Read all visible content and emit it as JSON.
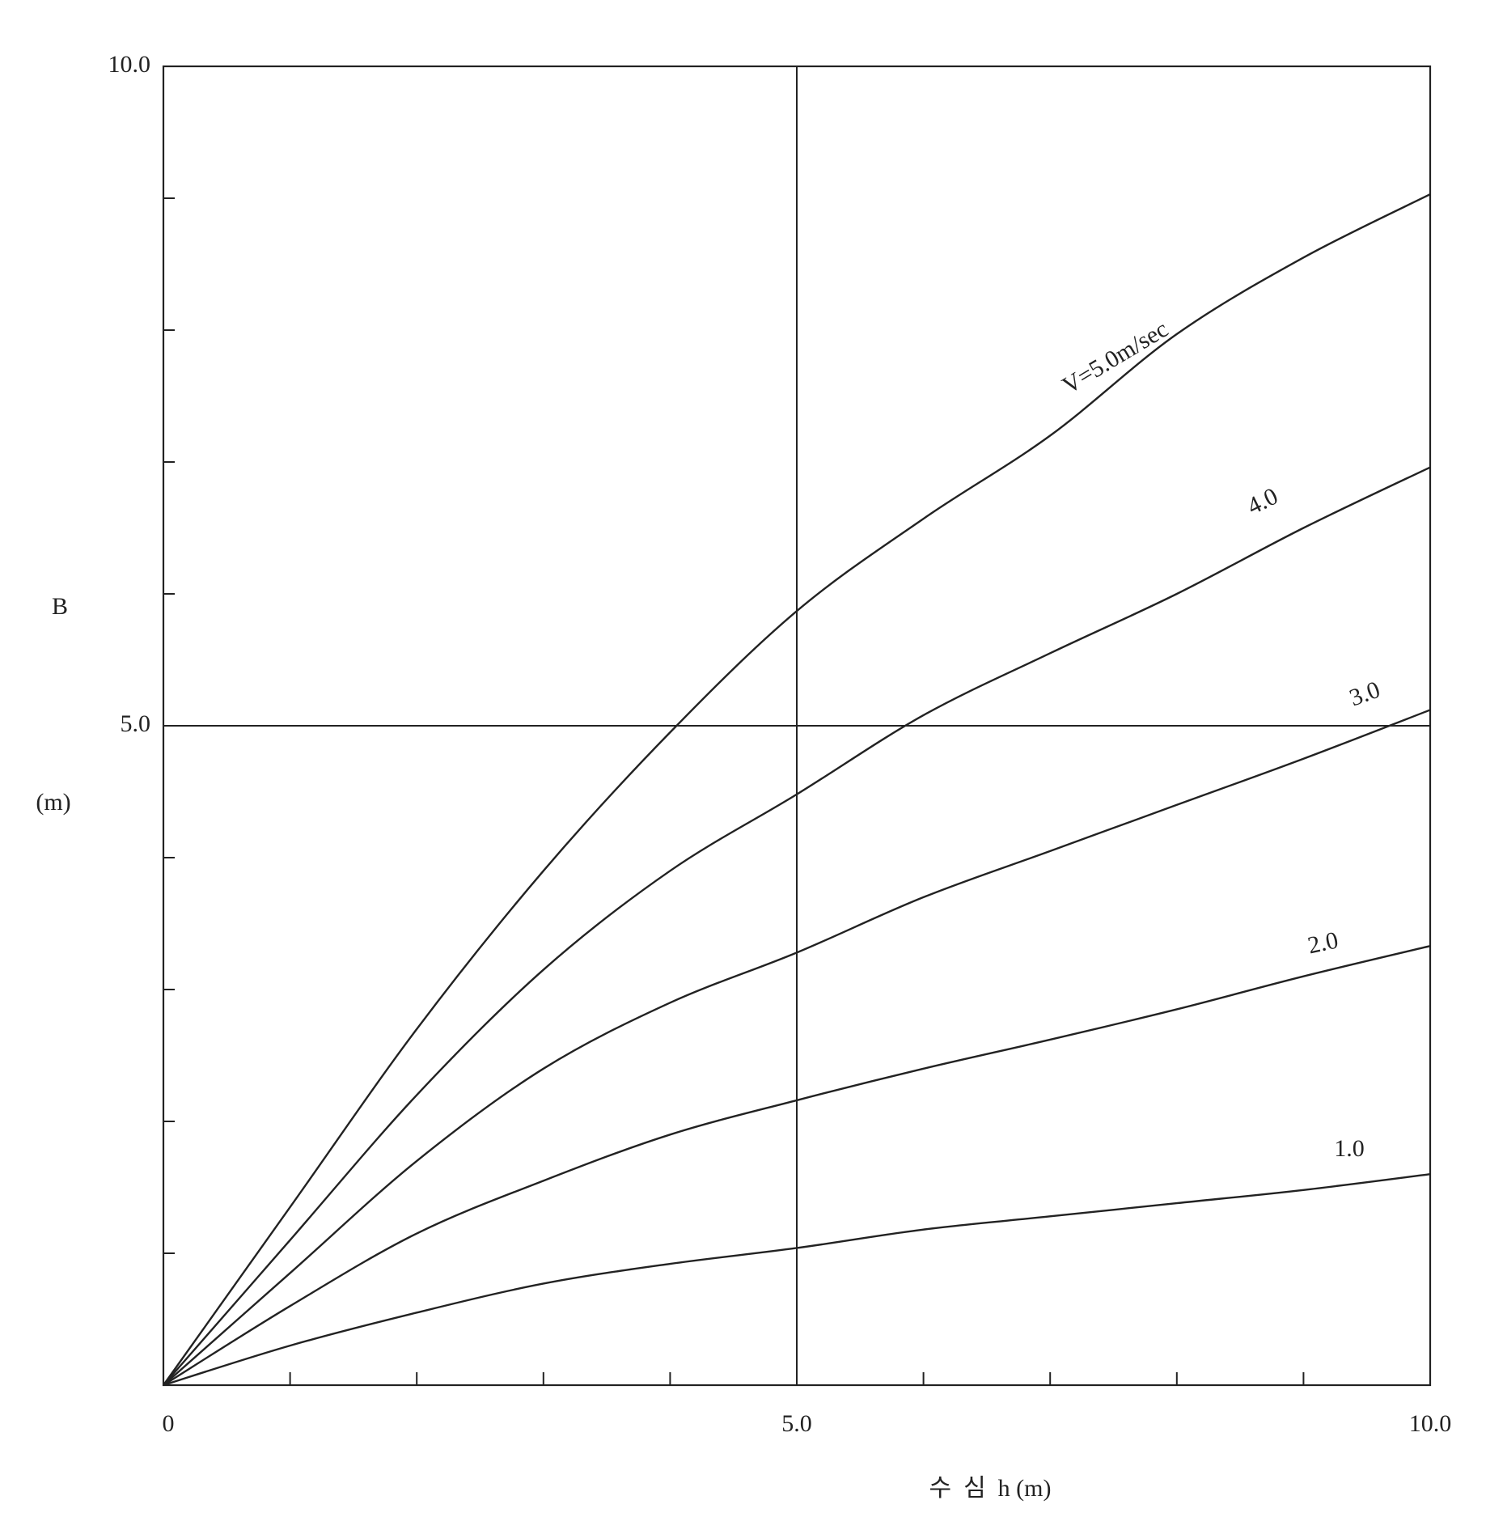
{
  "chart_data": {
    "type": "line",
    "x_label": "수  심  h (m)",
    "y_label": "B",
    "y_unit": "(m)",
    "x": [
      0,
      1,
      2,
      3,
      4,
      5,
      6,
      7,
      8,
      9,
      10
    ],
    "series": [
      {
        "name": "V=5.0m/sec",
        "color": "#222222",
        "values": [
          0,
          1.35,
          2.7,
          3.9,
          4.95,
          5.87,
          6.57,
          7.2,
          7.97,
          8.55,
          9.03
        ]
      },
      {
        "name": "4.0",
        "color": "#222222",
        "values": [
          0,
          1.1,
          2.2,
          3.15,
          3.9,
          4.48,
          5.08,
          5.55,
          6.0,
          6.5,
          6.96
        ]
      },
      {
        "name": "3.0",
        "color": "#222222",
        "values": [
          0,
          0.85,
          1.7,
          2.4,
          2.9,
          3.28,
          3.7,
          4.05,
          4.4,
          4.75,
          5.12
        ]
      },
      {
        "name": "2.0",
        "color": "#222222",
        "values": [
          0,
          0.6,
          1.15,
          1.55,
          1.9,
          2.16,
          2.4,
          2.62,
          2.85,
          3.1,
          3.33
        ]
      },
      {
        "name": "1.0",
        "color": "#222222",
        "values": [
          0,
          0.3,
          0.55,
          0.77,
          0.92,
          1.04,
          1.18,
          1.28,
          1.38,
          1.48,
          1.6
        ]
      }
    ],
    "xlim": [
      0,
      10
    ],
    "ylim": [
      0,
      10
    ],
    "xticks": [
      0,
      {
        "value": 5,
        "label": "5.0"
      },
      {
        "value": 10,
        "label": "10.0"
      }
    ],
    "yticks": [
      {
        "value": 5,
        "label": "5.0"
      },
      {
        "value": 10,
        "label": "10.0"
      }
    ],
    "xminorticks": [
      1,
      2,
      3,
      4,
      6,
      7,
      8,
      9
    ],
    "yminorticks": [
      1,
      2,
      3,
      4,
      6,
      7,
      8,
      9
    ],
    "grid": true
  }
}
